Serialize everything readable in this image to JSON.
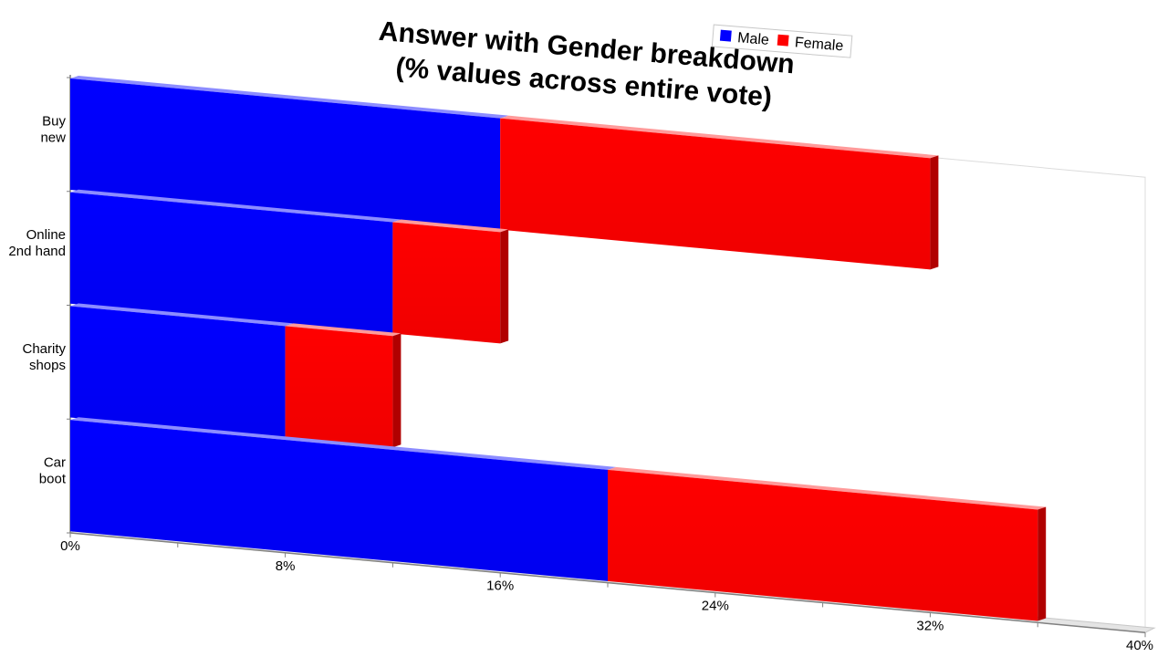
{
  "chart_data": {
    "type": "bar",
    "orientation": "horizontal",
    "stacked": true,
    "style": "3d-perspective",
    "title": [
      "Answer with Gender breakdown",
      "(% values across entire vote)"
    ],
    "categories": [
      [
        "Buy",
        "new"
      ],
      [
        "Online",
        "2nd hand"
      ],
      [
        "Charity",
        "shops"
      ],
      [
        "Car",
        "boot"
      ]
    ],
    "series": [
      {
        "name": "Male",
        "values": [
          16,
          12,
          8,
          20
        ],
        "color": "#0000ff"
      },
      {
        "name": "Female",
        "values": [
          16,
          4,
          4,
          16
        ],
        "color": "#ff0000"
      }
    ],
    "xlim": [
      0,
      40
    ],
    "x_ticks": [
      0,
      8,
      16,
      24,
      32,
      40
    ],
    "x_tick_labels": [
      "0%",
      "8%",
      "16%",
      "24%",
      "32%",
      "40%"
    ],
    "grid": false,
    "legend_position": "top"
  }
}
